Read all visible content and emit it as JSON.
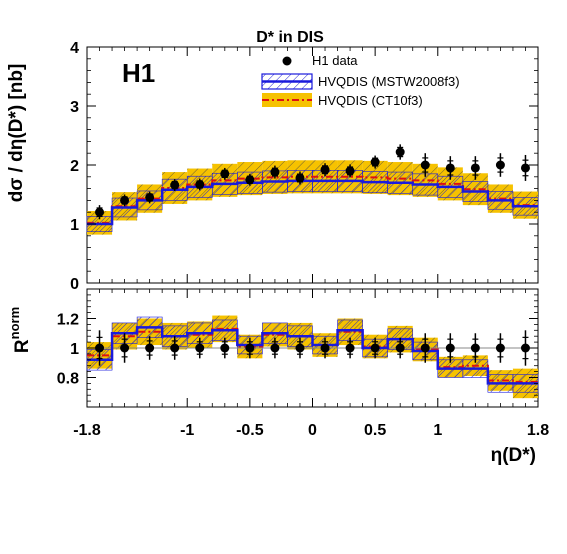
{
  "chart_data": [
    {
      "panel": "top",
      "type": "line",
      "title": "D* in DIS",
      "experiment_label": "H1",
      "ylabel": "dσ / dη(D*) [nb]",
      "ylim": [
        0,
        4
      ],
      "y_ticks": [
        0,
        1,
        2,
        3,
        4
      ],
      "legend": {
        "position": "top-right",
        "entries": [
          "H1 data",
          "HVQDIS (MSTW2008f3)",
          "HVQDIS (CT10f3)"
        ]
      },
      "bin_edges": [
        -1.8,
        -1.6,
        -1.4,
        -1.2,
        -1.0,
        -0.8,
        -0.6,
        -0.4,
        -0.2,
        0.0,
        0.2,
        0.4,
        0.6,
        0.8,
        1.0,
        1.2,
        1.4,
        1.6,
        1.8
      ],
      "series": [
        {
          "name": "H1 data",
          "x": [
            -1.7,
            -1.5,
            -1.3,
            -1.1,
            -0.9,
            -0.7,
            -0.5,
            -0.3,
            -0.1,
            0.1,
            0.3,
            0.5,
            0.7,
            0.9,
            1.1,
            1.3,
            1.5,
            1.7
          ],
          "values": [
            1.2,
            1.4,
            1.45,
            1.66,
            1.67,
            1.85,
            1.75,
            1.88,
            1.78,
            1.92,
            1.9,
            2.05,
            2.22,
            2.0,
            1.95,
            1.95,
            2.0,
            1.95
          ],
          "err_low": [
            0.12,
            0.1,
            0.1,
            0.1,
            0.1,
            0.1,
            0.1,
            0.11,
            0.11,
            0.11,
            0.11,
            0.11,
            0.13,
            0.2,
            0.2,
            0.2,
            0.2,
            0.22
          ],
          "err_high": [
            0.12,
            0.1,
            0.1,
            0.1,
            0.1,
            0.1,
            0.1,
            0.11,
            0.11,
            0.11,
            0.11,
            0.11,
            0.13,
            0.2,
            0.2,
            0.2,
            0.2,
            0.22
          ]
        },
        {
          "name": "HVQDIS (MSTW2008f3)",
          "values": [
            1.0,
            1.28,
            1.4,
            1.58,
            1.63,
            1.68,
            1.7,
            1.72,
            1.73,
            1.73,
            1.73,
            1.71,
            1.7,
            1.67,
            1.63,
            1.55,
            1.4,
            1.3
          ],
          "band_low": [
            0.87,
            1.12,
            1.24,
            1.4,
            1.45,
            1.5,
            1.52,
            1.54,
            1.55,
            1.55,
            1.55,
            1.53,
            1.52,
            1.49,
            1.45,
            1.38,
            1.25,
            1.15
          ],
          "band_high": [
            1.13,
            1.44,
            1.56,
            1.76,
            1.81,
            1.86,
            1.88,
            1.9,
            1.91,
            1.91,
            1.91,
            1.89,
            1.88,
            1.85,
            1.81,
            1.72,
            1.55,
            1.45
          ]
        },
        {
          "name": "HVQDIS (CT10f3)",
          "values": [
            1.02,
            1.3,
            1.43,
            1.61,
            1.67,
            1.74,
            1.77,
            1.79,
            1.8,
            1.8,
            1.8,
            1.79,
            1.77,
            1.74,
            1.68,
            1.59,
            1.43,
            1.32
          ],
          "band_low": [
            0.82,
            1.06,
            1.19,
            1.34,
            1.4,
            1.46,
            1.49,
            1.51,
            1.52,
            1.52,
            1.52,
            1.51,
            1.49,
            1.46,
            1.4,
            1.32,
            1.19,
            1.09
          ],
          "band_high": [
            1.22,
            1.54,
            1.67,
            1.88,
            1.94,
            2.02,
            2.05,
            2.07,
            2.08,
            2.08,
            2.08,
            2.07,
            2.05,
            2.02,
            1.96,
            1.86,
            1.67,
            1.55
          ]
        }
      ]
    },
    {
      "panel": "bottom",
      "type": "line",
      "ylabel": "R^norm",
      "ylabel_base": "R",
      "ylabel_sup": "norm",
      "xlabel": "η(D*)",
      "ylim": [
        0.6,
        1.4
      ],
      "y_ticks": [
        0.8,
        1.0,
        1.2
      ],
      "y_tick_labels": [
        "0.8",
        "1",
        "1.2"
      ],
      "x_ticks": [
        -1.8,
        -1.0,
        -0.5,
        0.0,
        0.5,
        1.0,
        1.8
      ],
      "x_tick_labels": [
        "-1.8",
        "-1",
        "-0.5",
        "0",
        "0.5",
        "1",
        "1.8"
      ],
      "reference_line": 1.0,
      "bin_edges": [
        -1.8,
        -1.6,
        -1.4,
        -1.2,
        -1.0,
        -0.8,
        -0.6,
        -0.4,
        -0.2,
        0.0,
        0.2,
        0.4,
        0.6,
        0.8,
        1.0,
        1.2,
        1.4,
        1.6,
        1.8
      ],
      "series": [
        {
          "name": "H1 data",
          "x": [
            -1.7,
            -1.5,
            -1.3,
            -1.1,
            -0.9,
            -0.7,
            -0.5,
            -0.3,
            -0.1,
            0.1,
            0.3,
            0.5,
            0.7,
            0.9,
            1.1,
            1.3,
            1.5,
            1.7
          ],
          "values": [
            1,
            1,
            1,
            1,
            1,
            1,
            1,
            1,
            1,
            1,
            1,
            1,
            1,
            1,
            1,
            1,
            1,
            1
          ],
          "err_low": [
            0.12,
            0.1,
            0.08,
            0.08,
            0.07,
            0.07,
            0.07,
            0.07,
            0.07,
            0.07,
            0.07,
            0.07,
            0.07,
            0.1,
            0.1,
            0.1,
            0.1,
            0.12
          ],
          "err_high": [
            0.12,
            0.1,
            0.08,
            0.08,
            0.07,
            0.07,
            0.07,
            0.07,
            0.07,
            0.07,
            0.07,
            0.07,
            0.07,
            0.1,
            0.1,
            0.1,
            0.1,
            0.12
          ]
        },
        {
          "name": "HVQDIS (MSTW2008f3)",
          "values": [
            0.92,
            1.1,
            1.14,
            1.08,
            1.1,
            1.12,
            1.02,
            1.1,
            1.08,
            1.02,
            1.12,
            1.0,
            1.06,
            0.98,
            0.86,
            0.86,
            0.76,
            0.76
          ],
          "band_low": [
            0.85,
            1.03,
            1.07,
            1.01,
            1.03,
            1.05,
            0.96,
            1.03,
            1.01,
            0.96,
            1.05,
            0.94,
            0.99,
            0.92,
            0.8,
            0.8,
            0.7,
            0.7
          ],
          "band_high": [
            0.99,
            1.17,
            1.21,
            1.15,
            1.17,
            1.19,
            1.08,
            1.17,
            1.15,
            1.08,
            1.19,
            1.06,
            1.13,
            1.04,
            0.92,
            0.92,
            0.82,
            0.82
          ]
        },
        {
          "name": "HVQDIS (CT10f3)",
          "values": [
            0.95,
            1.08,
            1.11,
            1.08,
            1.09,
            1.13,
            1.01,
            1.09,
            1.08,
            1.02,
            1.11,
            1.01,
            1.06,
            0.99,
            0.87,
            0.88,
            0.78,
            0.77
          ],
          "band_low": [
            0.86,
            0.99,
            1.02,
            0.99,
            1.0,
            1.04,
            0.93,
            1.01,
            0.99,
            0.94,
            1.02,
            0.93,
            0.97,
            0.91,
            0.8,
            0.81,
            0.71,
            0.66
          ],
          "band_high": [
            1.04,
            1.17,
            1.2,
            1.17,
            1.18,
            1.22,
            1.09,
            1.17,
            1.17,
            1.1,
            1.2,
            1.09,
            1.15,
            1.07,
            0.94,
            0.95,
            0.85,
            0.86
          ]
        }
      ]
    }
  ],
  "colors": {
    "data": "#000000",
    "mstw_line": "#1a1adc",
    "mstw_hatch": "#2020d0",
    "ct10_line": "#dd1111",
    "ct10_band": "#f6c200",
    "ct10_hatch": "#444444",
    "reference_line": "#888888"
  }
}
